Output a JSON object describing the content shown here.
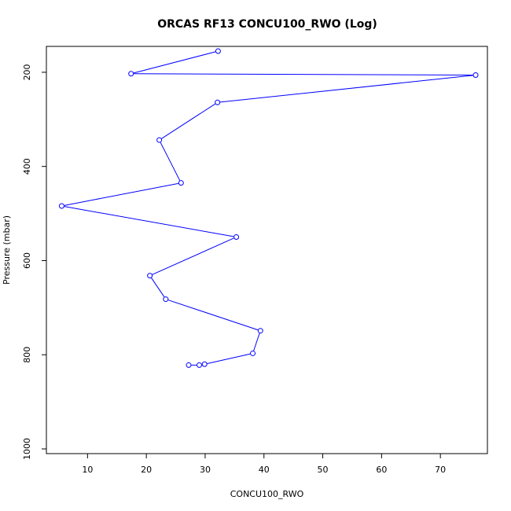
{
  "chart_data": {
    "type": "line",
    "title": "ORCAS RF13 CONCU100_RWO (Log)",
    "xlabel": "CONCU100_RWO",
    "ylabel": "Pressure (mbar)",
    "xlim": [
      3,
      78
    ],
    "ylim": [
      1010,
      145
    ],
    "y_inverted": true,
    "grid": false,
    "line_color": "#0000ff",
    "marker": "open-circle",
    "x_ticks": [
      10,
      20,
      30,
      40,
      50,
      60,
      70
    ],
    "y_ticks": [
      200,
      400,
      600,
      800,
      1000
    ],
    "series": [
      {
        "x": [
          32.2,
          17.4,
          76.0,
          32.1,
          22.2,
          25.9,
          5.6,
          35.3,
          20.6,
          23.3,
          39.4,
          38.1,
          29.9,
          29.0,
          27.2
        ],
        "y": [
          155,
          203,
          206,
          264,
          344,
          435,
          484,
          550,
          632,
          682,
          749,
          797,
          820,
          822,
          822
        ]
      }
    ]
  }
}
